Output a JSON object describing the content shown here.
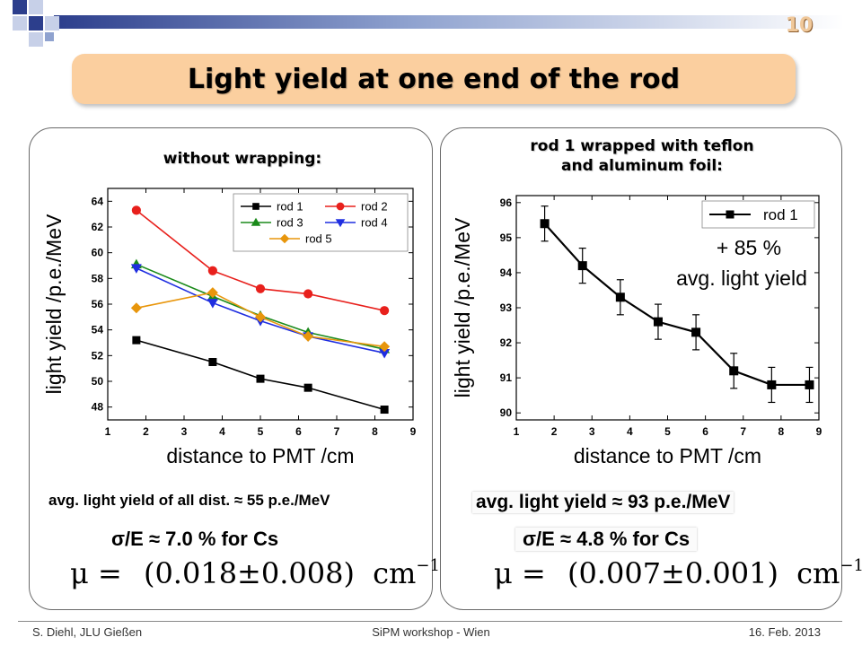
{
  "slide_number": "10",
  "title": "Light yield at one end of the rod",
  "left_panel": {
    "heading": "without wrapping:",
    "avg_text": "avg. light  yield of all dist.  ≈ 55 p.e./MeV",
    "resolution_text": "σ/E ≈ 7.0 % for Cs",
    "mu": {
      "symbol": "μ",
      "eq": "=",
      "value": "(0.018±0.008)",
      "unit": "cm",
      "exp": "−1"
    }
  },
  "right_panel": {
    "heading_line1": "rod 1 wrapped with teflon",
    "heading_line2": "and aluminum foil:",
    "avg_text": "avg. light  yield ≈ 93 p.e./MeV",
    "resolution_text": "σ/E ≈ 4.8 % for Cs",
    "mu": {
      "symbol": "μ",
      "eq": "=",
      "value": "(0.007±0.001)",
      "unit": "cm",
      "exp": "−1"
    }
  },
  "chart_data": [
    {
      "type": "line",
      "xlabel": "distance to PMT /cm",
      "ylabel": "light yield /p.e./MeV",
      "xlim": [
        1,
        9
      ],
      "ylim": [
        47,
        65
      ],
      "xticks": [
        1,
        2,
        3,
        4,
        5,
        6,
        7,
        8,
        9
      ],
      "yticks": [
        48,
        50,
        52,
        54,
        56,
        58,
        60,
        62,
        64
      ],
      "x": [
        1.75,
        3.75,
        5.0,
        6.25,
        8.25
      ],
      "legend_position": "top-right",
      "series": [
        {
          "name": "rod 1",
          "values": [
            53.2,
            51.5,
            50.2,
            49.5,
            47.8
          ],
          "color": "#000000",
          "marker": "square"
        },
        {
          "name": "rod 2",
          "values": [
            63.3,
            58.6,
            57.2,
            56.8,
            55.5
          ],
          "color": "#e8201c",
          "marker": "circle"
        },
        {
          "name": "rod 3",
          "values": [
            59.1,
            56.6,
            55.1,
            53.8,
            52.5
          ],
          "color": "#1a8a1a",
          "marker": "triangle-up"
        },
        {
          "name": "rod 4",
          "values": [
            58.8,
            56.1,
            54.7,
            53.5,
            52.2
          ],
          "color": "#1f2ee0",
          "marker": "triangle-down"
        },
        {
          "name": "rod 5",
          "values": [
            55.7,
            56.9,
            55.0,
            53.5,
            52.7
          ],
          "color": "#e8960c",
          "marker": "diamond"
        }
      ]
    },
    {
      "type": "line",
      "xlabel": "distance to PMT /cm",
      "ylabel": "light yield /p.e./MeV",
      "xlim": [
        1,
        9
      ],
      "ylim": [
        89.8,
        96.2
      ],
      "xticks": [
        1,
        2,
        3,
        4,
        5,
        6,
        7,
        8,
        9
      ],
      "yticks": [
        90,
        91,
        92,
        93,
        94,
        95,
        96
      ],
      "x": [
        1.75,
        2.75,
        3.75,
        4.75,
        5.75,
        6.75,
        7.75,
        8.75
      ],
      "legend_position": "top-right",
      "annotation_line1": "+ 85 %",
      "annotation_line2": "avg. light yield",
      "series": [
        {
          "name": "rod 1",
          "values": [
            95.4,
            94.2,
            93.3,
            92.6,
            92.3,
            91.2,
            90.8,
            90.8
          ],
          "errors": [
            0.5,
            0.5,
            0.5,
            0.5,
            0.5,
            0.5,
            0.5,
            0.5
          ],
          "color": "#000000",
          "marker": "square"
        }
      ]
    }
  ],
  "footer": {
    "left": "S. Diehl, JLU Gießen",
    "center": "SiPM workshop - Wien",
    "right": "16.  Feb. 2013"
  }
}
